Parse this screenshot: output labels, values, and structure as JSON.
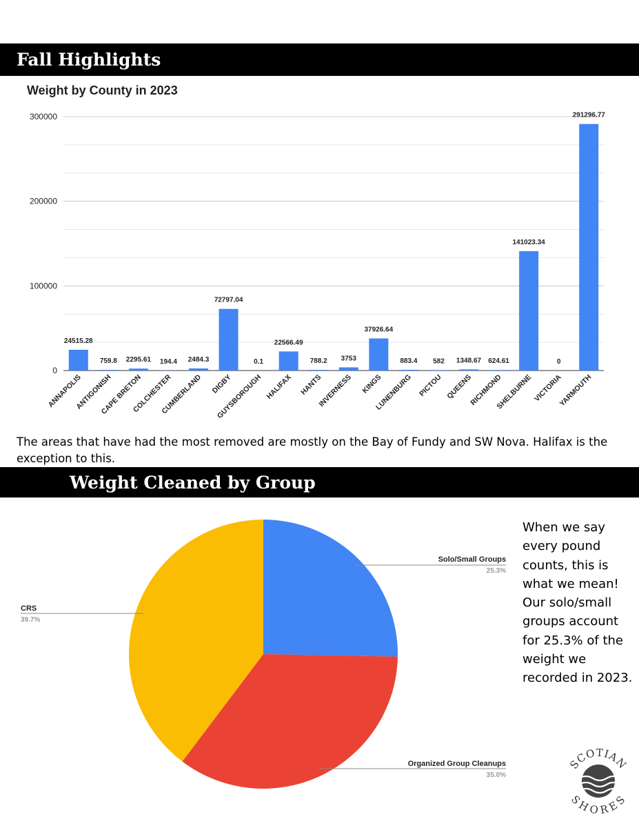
{
  "section1": {
    "title": "Fall Highlights"
  },
  "caption": "The areas that have had the most removed are mostly on the Bay of Fundy and SW Nova. Halifax is the exception to this.",
  "section2": {
    "title": "Weight Cleaned by Group"
  },
  "side_note": "When we say every pound counts, this is what we mean! Our solo/small groups account for 25.3% of the weight we recorded in 2023.",
  "logo": {
    "text": "SCOTIAN SHORES"
  },
  "chart_data": [
    {
      "type": "bar",
      "title": "Weight by County in 2023",
      "categories": [
        "ANNAPOLIS",
        "ANTIGONISH",
        "CAPE BRETON",
        "COLCHESTER",
        "CUMBERLAND",
        "DIGBY",
        "GUYSBOROUGH",
        "HALIFAX",
        "HANTS",
        "INVERNESS",
        "KINGS",
        "LUNENBURG",
        "PICTOU",
        "QUEENS",
        "RICHMOND",
        "SHELBURNE",
        "VICTORIA",
        "YARMOUTH"
      ],
      "values": [
        24515.28,
        759.8,
        2295.61,
        194.4,
        2484.3,
        72797.04,
        0.1,
        22566.49,
        788.2,
        3753,
        37926.64,
        883.4,
        582,
        1348.67,
        624.61,
        141023.34,
        0,
        291296.77
      ],
      "value_labels": [
        "24515.28",
        "759.8",
        "2295.61",
        "194.4",
        "2484.3",
        "72797.04",
        "0.1",
        "22566.49",
        "788.2",
        "3753",
        "37926.64",
        "883.4",
        "582",
        "1348.67",
        "624.61",
        "141023.34",
        "0",
        "291296.77"
      ],
      "yticks": [
        0,
        100000,
        200000,
        300000
      ],
      "ytick_labels": [
        "0",
        "100000",
        "200000",
        "300000"
      ],
      "ylim": [
        0,
        300000
      ],
      "grid": true,
      "legend": "none",
      "color": "#4285f4"
    },
    {
      "type": "pie",
      "slices": [
        {
          "label": "Solo/Small Groups",
          "value": 25.3,
          "percent_label": "25.3%",
          "color": "#4285f4"
        },
        {
          "label": "Organized Group Cleanups",
          "value": 35.0,
          "percent_label": "35.0%",
          "color": "#ea4335"
        },
        {
          "label": "CRS",
          "value": 39.7,
          "percent_label": "39.7%",
          "color": "#fbbc04"
        }
      ]
    }
  ]
}
